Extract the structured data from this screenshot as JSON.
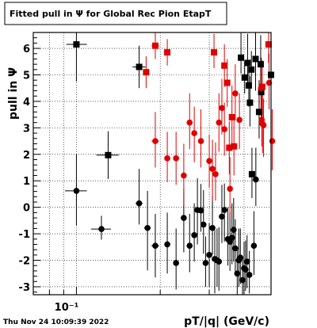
{
  "title": "Fitted pull in  Ψ  for Global Rec Pion EtapT",
  "footer_timestamp": "Thu Nov 24 10:09:39 2022",
  "chart_data": {
    "type": "scatter",
    "title": "Fitted pull in  Ψ  for Global Rec Pion EtapT",
    "xlabel": "pT/|q| (GeV/c)",
    "ylabel": "pull in  Ψ",
    "xscale": "log",
    "xlim": [
      0.07,
      0.5
    ],
    "ylim": [
      -3.3,
      6.6
    ],
    "xticklabels": [
      "10⁻¹"
    ],
    "yticks": [
      -3,
      -2,
      -1,
      0,
      1,
      2,
      3,
      4,
      5,
      6
    ],
    "grid": true,
    "legend": "none",
    "colors": {
      "black": "#000000",
      "red": "#e00000"
    },
    "series": [
      {
        "color": "#000000",
        "marker": "square",
        "points": [
          {
            "x": 0.1,
            "y": 6.15,
            "xerr": [
              0.008,
              0.009
            ],
            "yerr": [
              1.4,
              1.6
            ]
          },
          {
            "x": 0.13,
            "y": 1.97,
            "xerr": [
              0.012,
              0.012
            ],
            "yerr": [
              0.9,
              0.9
            ]
          },
          {
            "x": 0.168,
            "y": 5.3,
            "xerr": [
              0.009,
              0.009
            ],
            "yerr": [
              0.8,
              0.8
            ]
          },
          {
            "x": 0.39,
            "y": 5.65,
            "xerr": [
              0.004,
              0.004
            ],
            "yerr": [
              0.6,
              1.0
            ]
          },
          {
            "x": 0.402,
            "y": 4.9,
            "xerr": [
              0.004,
              0.004
            ],
            "yerr": [
              0.6,
              0.6
            ]
          },
          {
            "x": 0.412,
            "y": 5.45,
            "xerr": [
              0.004,
              0.004
            ],
            "yerr": [
              0.8,
              1.1
            ]
          },
          {
            "x": 0.416,
            "y": 4.6,
            "xerr": [
              0.004,
              0.004
            ],
            "yerr": [
              0.8,
              0.8
            ]
          },
          {
            "x": 0.42,
            "y": 3.95,
            "xerr": [
              0.004,
              0.004
            ],
            "yerr": [
              0.9,
              1.0
            ]
          },
          {
            "x": 0.425,
            "y": 5.2,
            "xerr": [
              0.004,
              0.004
            ],
            "yerr": [
              0.7,
              0.7
            ]
          },
          {
            "x": 0.427,
            "y": 1.25,
            "xerr": [
              0.004,
              0.004
            ],
            "yerr": [
              0.9,
              1.0
            ]
          },
          {
            "x": 0.44,
            "y": 5.6,
            "xerr": [
              0.004,
              0.004
            ],
            "yerr": [
              1.2,
              1.1
            ]
          },
          {
            "x": 0.453,
            "y": 3.6,
            "xerr": [
              0.004,
              0.004
            ],
            "yerr": [
              1.0,
              1.2
            ]
          },
          {
            "x": 0.459,
            "y": 5.4,
            "xerr": [
              0.004,
              0.004
            ],
            "yerr": [
              0.9,
              1.1
            ]
          },
          {
            "x": 0.461,
            "y": 4.35,
            "xerr": [
              0.004,
              0.004
            ],
            "yerr": [
              1.0,
              1.3
            ]
          },
          {
            "x": 0.5,
            "y": 5.0,
            "xerr": [
              0.005,
              0.005
            ],
            "yerr": [
              0.8,
              1.2
            ]
          }
        ]
      },
      {
        "color": "#000000",
        "marker": "circle",
        "points": [
          {
            "x": 0.1,
            "y": 0.62,
            "xerr": [
              0.009,
              0.009
            ],
            "yerr": [
              1.3,
              1.4
            ]
          },
          {
            "x": 0.123,
            "y": -0.82,
            "xerr": [
              0.01,
              0.01
            ],
            "yerr": [
              0.4,
              0.5
            ]
          },
          {
            "x": 0.168,
            "y": 0.15,
            "xerr": [
              0.005,
              0.005
            ],
            "yerr": [
              0.8,
              1.3
            ]
          },
          {
            "x": 0.18,
            "y": -0.78,
            "xerr": [
              0.005,
              0.005
            ],
            "yerr": [
              1.6,
              1.4
            ]
          },
          {
            "x": 0.192,
            "y": -1.45,
            "xerr": [
              0.006,
              0.006
            ],
            "yerr": [
              1.2,
              1.2
            ]
          },
          {
            "x": 0.212,
            "y": -1.4,
            "xerr": [
              0.005,
              0.005
            ],
            "yerr": [
              1.1,
              1.2
            ]
          },
          {
            "x": 0.228,
            "y": -2.1,
            "xerr": [
              0.005,
              0.005
            ],
            "yerr": [
              1.0,
              1.3
            ]
          },
          {
            "x": 0.243,
            "y": -0.4,
            "xerr": [
              0.005,
              0.005
            ],
            "yerr": [
              1.3,
              1.1
            ]
          },
          {
            "x": 0.255,
            "y": -1.45,
            "xerr": [
              0.005,
              0.005
            ],
            "yerr": [
              1.0,
              1.2
            ]
          },
          {
            "x": 0.265,
            "y": -1.05,
            "xerr": [
              0.005,
              0.005
            ],
            "yerr": [
              1.0,
              1.2
            ]
          },
          {
            "x": 0.272,
            "y": -0.1,
            "xerr": [
              0.005,
              0.005
            ],
            "yerr": [
              1.3,
              1.2
            ]
          },
          {
            "x": 0.28,
            "y": -0.12,
            "xerr": [
              0.004,
              0.004
            ],
            "yerr": [
              0.8,
              1.0
            ]
          },
          {
            "x": 0.286,
            "y": -0.65,
            "xerr": [
              0.004,
              0.004
            ],
            "yerr": [
              1.1,
              1.3
            ]
          },
          {
            "x": 0.291,
            "y": -2.1,
            "xerr": [
              0.004,
              0.004
            ],
            "yerr": [
              0.9,
              1.0
            ]
          },
          {
            "x": 0.3,
            "y": -1.8,
            "xerr": [
              0.004,
              0.004
            ],
            "yerr": [
              1.2,
              1.2
            ]
          },
          {
            "x": 0.308,
            "y": -0.78,
            "xerr": [
              0.004,
              0.004
            ],
            "yerr": [
              1.0,
              1.2
            ]
          },
          {
            "x": 0.314,
            "y": -1.95,
            "xerr": [
              0.004,
              0.004
            ],
            "yerr": [
              1.3,
              1.1
            ]
          },
          {
            "x": 0.32,
            "y": -2.0,
            "xerr": [
              0.004,
              0.004
            ],
            "yerr": [
              1.0,
              1.2
            ]
          },
          {
            "x": 0.325,
            "y": -2.05,
            "xerr": [
              0.004,
              0.004
            ],
            "yerr": [
              1.1,
              1.3
            ]
          },
          {
            "x": 0.333,
            "y": -0.35,
            "xerr": [
              0.004,
              0.004
            ],
            "yerr": [
              1.0,
              1.2
            ]
          },
          {
            "x": 0.34,
            "y": -0.1,
            "xerr": [
              0.004,
              0.004
            ],
            "yerr": [
              1.2,
              1.0
            ]
          },
          {
            "x": 0.35,
            "y": -1.2,
            "xerr": [
              0.004,
              0.004
            ],
            "yerr": [
              1.0,
              1.2
            ]
          },
          {
            "x": 0.356,
            "y": -1.3,
            "xerr": [
              0.004,
              0.004
            ],
            "yerr": [
              1.1,
              1.1
            ]
          },
          {
            "x": 0.362,
            "y": -1.15,
            "xerr": [
              0.004,
              0.004
            ],
            "yerr": [
              1.0,
              1.3
            ]
          },
          {
            "x": 0.367,
            "y": -0.85,
            "xerr": [
              0.004,
              0.004
            ],
            "yerr": [
              1.2,
              1.2
            ]
          },
          {
            "x": 0.372,
            "y": -1.55,
            "xerr": [
              0.004,
              0.004
            ],
            "yerr": [
              1.0,
              1.1
            ]
          },
          {
            "x": 0.378,
            "y": -2.5,
            "xerr": [
              0.004,
              0.004
            ],
            "yerr": [
              0.9,
              1.0
            ]
          },
          {
            "x": 0.383,
            "y": -2.0,
            "xerr": [
              0.004,
              0.004
            ],
            "yerr": [
              1.0,
              1.2
            ]
          },
          {
            "x": 0.388,
            "y": -1.9,
            "xerr": [
              0.004,
              0.004
            ],
            "yerr": [
              1.0,
              1.1
            ]
          },
          {
            "x": 0.395,
            "y": -2.75,
            "xerr": [
              0.004,
              0.004
            ],
            "yerr": [
              0.6,
              0.9
            ]
          },
          {
            "x": 0.4,
            "y": -2.3,
            "xerr": [
              0.004,
              0.004
            ],
            "yerr": [
              0.9,
              1.0
            ]
          },
          {
            "x": 0.405,
            "y": -2.35,
            "xerr": [
              0.004,
              0.004
            ],
            "yerr": [
              0.8,
              1.1
            ]
          },
          {
            "x": 0.41,
            "y": -2.05,
            "xerr": [
              0.004,
              0.004
            ],
            "yerr": [
              1.0,
              1.0
            ]
          },
          {
            "x": 0.418,
            "y": -2.55,
            "xerr": [
              0.004,
              0.004
            ],
            "yerr": [
              0.7,
              0.9
            ]
          },
          {
            "x": 0.434,
            "y": -1.45,
            "xerr": [
              0.004,
              0.004
            ],
            "yerr": [
              1.1,
              1.3
            ]
          },
          {
            "x": 0.441,
            "y": 1.05,
            "xerr": [
              0.004,
              0.004
            ],
            "yerr": [
              1.0,
              1.2
            ]
          }
        ]
      },
      {
        "color": "#e00000",
        "marker": "square",
        "points": [
          {
            "x": 0.192,
            "y": 6.1,
            "xerr": [
              0.006,
              0.006
            ],
            "yerr": [
              0.5,
              0.5
            ]
          },
          {
            "x": 0.212,
            "y": 5.85,
            "xerr": [
              0.005,
              0.005
            ],
            "yerr": [
              0.5,
              0.5
            ]
          },
          {
            "x": 0.178,
            "y": 5.1,
            "xerr": [
              0.004,
              0.004
            ],
            "yerr": [
              0.6,
              0.6
            ]
          },
          {
            "x": 0.312,
            "y": 5.85,
            "xerr": [
              0.004,
              0.004
            ],
            "yerr": [
              0.6,
              0.7
            ]
          },
          {
            "x": 0.34,
            "y": 5.35,
            "xerr": [
              0.004,
              0.004
            ],
            "yerr": [
              0.8,
              0.8
            ]
          },
          {
            "x": 0.348,
            "y": 4.7,
            "xerr": [
              0.004,
              0.004
            ],
            "yerr": [
              0.9,
              0.9
            ]
          },
          {
            "x": 0.354,
            "y": 2.25,
            "xerr": [
              0.004,
              0.004
            ],
            "yerr": [
              1.0,
              1.0
            ]
          },
          {
            "x": 0.362,
            "y": 3.4,
            "xerr": [
              0.004,
              0.004
            ],
            "yerr": [
              1.0,
              1.2
            ]
          },
          {
            "x": 0.368,
            "y": 2.3,
            "xerr": [
              0.004,
              0.004
            ],
            "yerr": [
              1.1,
              1.1
            ]
          },
          {
            "x": 0.465,
            "y": 4.55,
            "xerr": [
              0.004,
              0.004
            ],
            "yerr": [
              0.9,
              1.0
            ]
          },
          {
            "x": 0.49,
            "y": 6.15,
            "xerr": [
              0.005,
              0.005
            ],
            "yerr": [
              0.7,
              0.6
            ]
          }
        ]
      },
      {
        "color": "#e00000",
        "marker": "circle",
        "points": [
          {
            "x": 0.192,
            "y": 2.5,
            "xerr": [
              0.006,
              0.006
            ],
            "yerr": [
              1.0,
              1.1
            ]
          },
          {
            "x": 0.212,
            "y": 1.85,
            "xerr": [
              0.005,
              0.005
            ],
            "yerr": [
              0.9,
              1.0
            ]
          },
          {
            "x": 0.228,
            "y": 1.85,
            "xerr": [
              0.005,
              0.005
            ],
            "yerr": [
              1.0,
              1.0
            ]
          },
          {
            "x": 0.243,
            "y": 1.2,
            "xerr": [
              0.005,
              0.005
            ],
            "yerr": [
              1.1,
              1.2
            ]
          },
          {
            "x": 0.255,
            "y": 3.2,
            "xerr": [
              0.005,
              0.005
            ],
            "yerr": [
              1.0,
              1.1
            ]
          },
          {
            "x": 0.265,
            "y": 2.8,
            "xerr": [
              0.005,
              0.005
            ],
            "yerr": [
              1.1,
              1.0
            ]
          },
          {
            "x": 0.28,
            "y": 2.5,
            "xerr": [
              0.004,
              0.004
            ],
            "yerr": [
              1.0,
              1.2
            ]
          },
          {
            "x": 0.3,
            "y": 1.75,
            "xerr": [
              0.004,
              0.004
            ],
            "yerr": [
              1.0,
              1.0
            ]
          },
          {
            "x": 0.308,
            "y": 1.45,
            "xerr": [
              0.004,
              0.004
            ],
            "yerr": [
              1.2,
              1.1
            ]
          },
          {
            "x": 0.316,
            "y": 1.25,
            "xerr": [
              0.004,
              0.004
            ],
            "yerr": [
              1.0,
              1.2
            ]
          },
          {
            "x": 0.325,
            "y": 3.2,
            "xerr": [
              0.004,
              0.004
            ],
            "yerr": [
              1.1,
              1.1
            ]
          },
          {
            "x": 0.333,
            "y": 3.75,
            "xerr": [
              0.004,
              0.004
            ],
            "yerr": [
              1.0,
              1.1
            ]
          },
          {
            "x": 0.34,
            "y": 2.95,
            "xerr": [
              0.004,
              0.004
            ],
            "yerr": [
              1.0,
              1.0
            ]
          },
          {
            "x": 0.356,
            "y": 0.7,
            "xerr": [
              0.004,
              0.004
            ],
            "yerr": [
              1.1,
              1.2
            ]
          },
          {
            "x": 0.372,
            "y": 4.3,
            "xerr": [
              0.004,
              0.004
            ],
            "yerr": [
              1.0,
              1.1
            ]
          },
          {
            "x": 0.385,
            "y": 3.3,
            "xerr": [
              0.004,
              0.004
            ],
            "yerr": [
              1.1,
              1.0
            ]
          },
          {
            "x": 0.46,
            "y": 4.5,
            "xerr": [
              0.004,
              0.004
            ],
            "yerr": [
              1.0,
              1.0
            ]
          },
          {
            "x": 0.463,
            "y": 3.3,
            "xerr": [
              0.004,
              0.004
            ],
            "yerr": [
              1.0,
              1.1
            ]
          },
          {
            "x": 0.466,
            "y": 3.15,
            "xerr": [
              0.004,
              0.004
            ],
            "yerr": [
              1.1,
              1.1
            ]
          },
          {
            "x": 0.47,
            "y": 3.1,
            "xerr": [
              0.004,
              0.004
            ],
            "yerr": [
              1.2,
              1.0
            ]
          },
          {
            "x": 0.492,
            "y": 4.7,
            "xerr": [
              0.005,
              0.005
            ],
            "yerr": [
              1.0,
              1.1
            ]
          },
          {
            "x": 0.505,
            "y": 2.5,
            "xerr": [
              0.005,
              0.005
            ],
            "yerr": [
              1.1,
              1.2
            ]
          }
        ]
      }
    ]
  }
}
